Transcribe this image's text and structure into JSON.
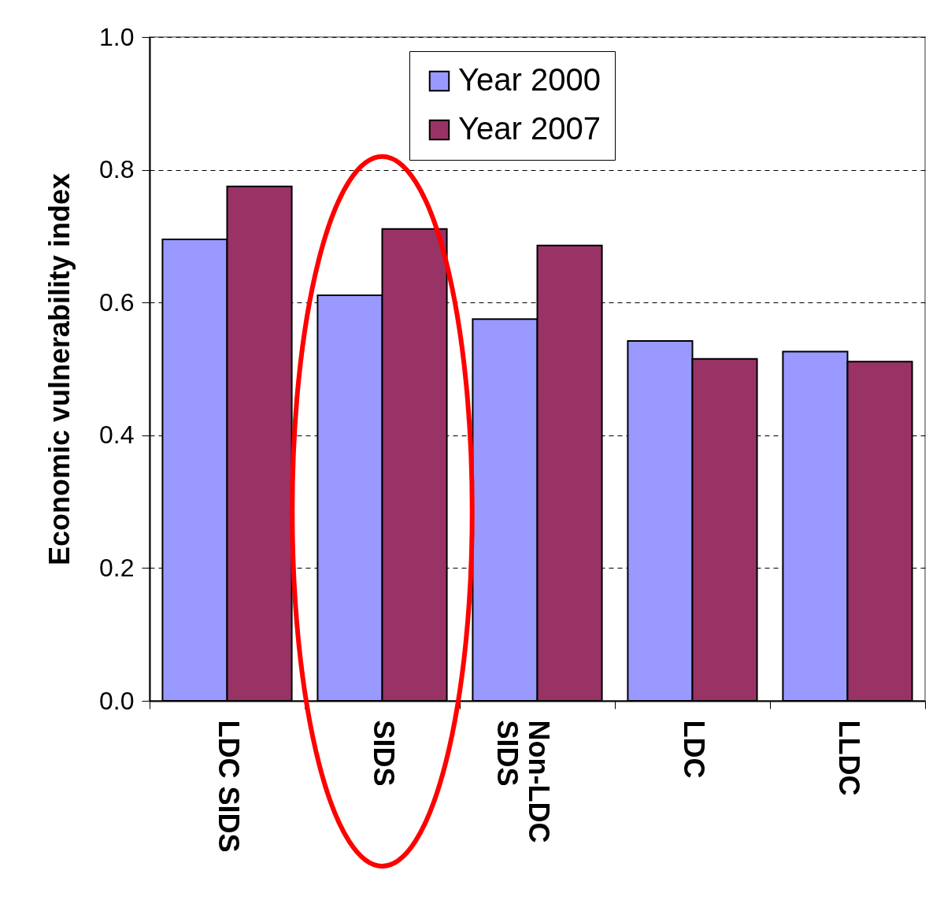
{
  "chart_data": {
    "type": "bar",
    "ylabel": "Economic vulnerability index",
    "categories": [
      "LDC SIDS",
      "SIDS",
      "Non-LDC SIDS",
      "LDC",
      "LLDC"
    ],
    "series": [
      {
        "name": "Year 2000",
        "color": "#9999ff",
        "values": [
          0.695,
          0.611,
          0.575,
          0.542,
          0.526
        ]
      },
      {
        "name": "Year 2007",
        "color": "#993366",
        "values": [
          0.775,
          0.711,
          0.686,
          0.515,
          0.511
        ]
      }
    ],
    "ylim": [
      0,
      1
    ],
    "yticks": [
      {
        "value": 0,
        "label": "0.0"
      },
      {
        "value": 0.2,
        "label": "0.2"
      },
      {
        "value": 0.4,
        "label": "0.4"
      },
      {
        "value": 0.6,
        "label": "0.6"
      },
      {
        "value": 0.8,
        "label": "0.8"
      },
      {
        "value": 1,
        "label": "1.0"
      }
    ],
    "grid": "y",
    "legend": "top"
  }
}
